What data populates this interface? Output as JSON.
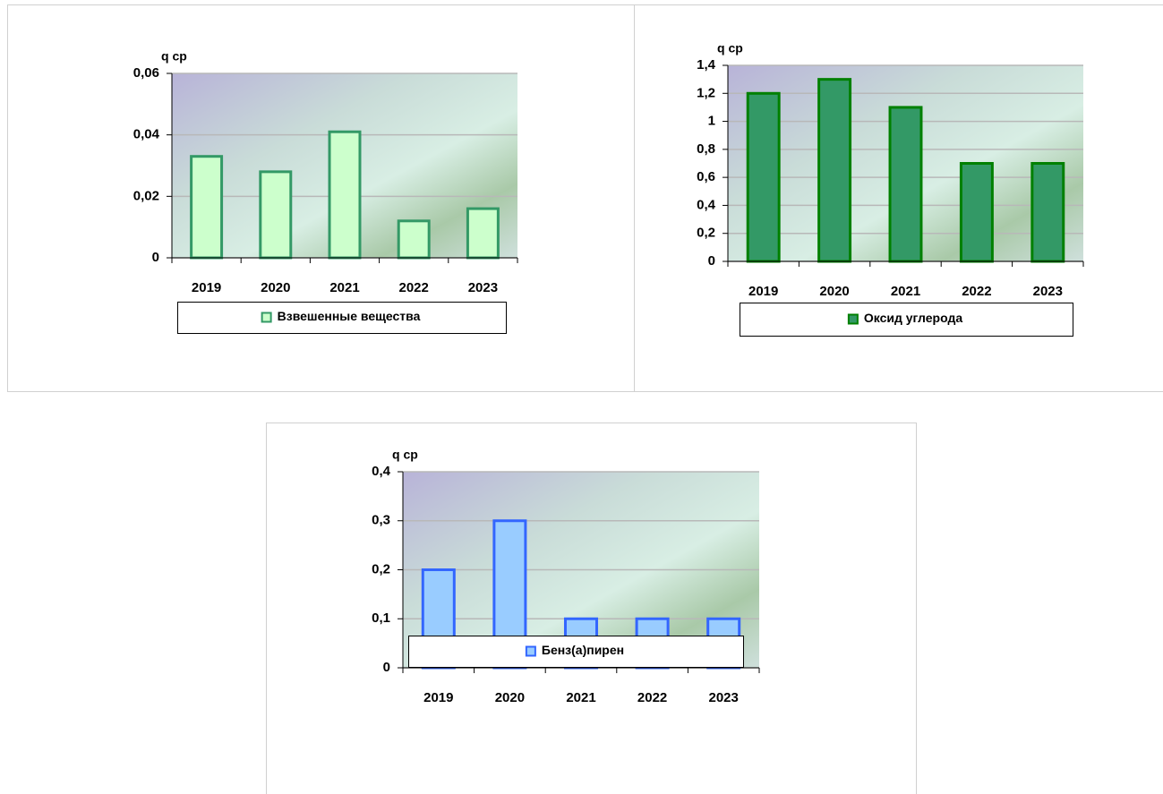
{
  "chart_data": [
    {
      "type": "bar",
      "y_label": "q ср",
      "categories": [
        "2019",
        "2020",
        "2021",
        "2022",
        "2023"
      ],
      "series": [
        {
          "name": "Взвешенные вещества",
          "color": "#ccffcc",
          "edge_color": "#339966",
          "values": [
            0.033,
            0.028,
            0.041,
            0.012,
            0.016
          ]
        }
      ],
      "ylim": [
        0,
        0.06
      ],
      "yticks": [
        0,
        {
          "value": 0.02,
          "label": "0,02"
        },
        {
          "value": 0.04,
          "label": "0,04"
        },
        {
          "value": 0.06,
          "label": "0,06"
        }
      ],
      "grid": true
    },
    {
      "type": "bar",
      "y_label": "q ср",
      "categories": [
        "2019",
        "2020",
        "2021",
        "2022",
        "2023"
      ],
      "series": [
        {
          "name": "Оксид углерода",
          "color": "#339966",
          "edge_color": "#008000",
          "values": [
            1.2,
            1.3,
            1.1,
            0.7,
            0.7
          ]
        }
      ],
      "ylim": [
        0,
        1.4
      ],
      "yticks": [
        0,
        {
          "value": 0.2,
          "label": "0,2"
        },
        {
          "value": 0.4,
          "label": "0,4"
        },
        {
          "value": 0.6,
          "label": "0,6"
        },
        {
          "value": 0.8,
          "label": "0,8"
        },
        1,
        {
          "value": 1.2,
          "label": "1,2"
        },
        {
          "value": 1.4,
          "label": "1,4"
        }
      ],
      "grid": true
    },
    {
      "type": "bar",
      "y_label": "q ср",
      "categories": [
        "2019",
        "2020",
        "2021",
        "2022",
        "2023"
      ],
      "series": [
        {
          "name": "Бенз(а)пирен",
          "color": "#99ccff",
          "edge_color": "#3366ff",
          "values": [
            0.2,
            0.3,
            0.1,
            0.1,
            0.1
          ]
        }
      ],
      "ylim": [
        0,
        0.4
      ],
      "yticks": [
        0,
        {
          "value": 0.1,
          "label": "0,1"
        },
        {
          "value": 0.2,
          "label": "0,2"
        },
        {
          "value": 0.3,
          "label": "0,3"
        },
        {
          "value": 0.4,
          "label": "0,4"
        }
      ],
      "grid": true
    }
  ]
}
